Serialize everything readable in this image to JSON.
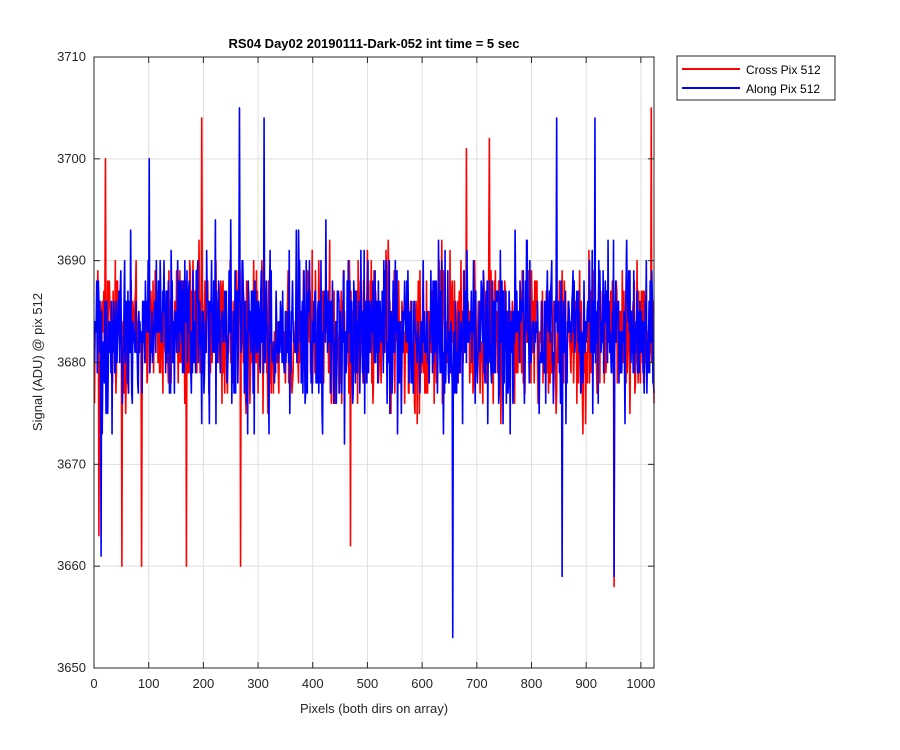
{
  "chart_data": {
    "type": "line",
    "title": "RS04 Day02 20190111-Dark-052 int time = 5 sec",
    "xlabel": "Pixels (both dirs on array)",
    "ylabel": "Signal (ADU) @ pix 512",
    "xlim": [
      0,
      1024
    ],
    "ylim": [
      3650,
      3710
    ],
    "xticks": [
      0,
      100,
      200,
      300,
      400,
      500,
      600,
      700,
      800,
      900,
      1000
    ],
    "yticks": [
      3650,
      3660,
      3670,
      3680,
      3690,
      3700,
      3710
    ],
    "grid": true,
    "legend_position": "outside-top-right",
    "series": [
      {
        "name": "Cross Pix 512",
        "color": "#ff0000",
        "mean": 3683,
        "typical_low": 3672,
        "typical_high": 3694,
        "n_points": 1024,
        "notable_points": [
          {
            "x": 8,
            "y": 3663
          },
          {
            "x": 20,
            "y": 3700
          },
          {
            "x": 50,
            "y": 3660
          },
          {
            "x": 86,
            "y": 3660
          },
          {
            "x": 168,
            "y": 3660
          },
          {
            "x": 196,
            "y": 3704
          },
          {
            "x": 267,
            "y": 3660
          },
          {
            "x": 468,
            "y": 3662
          },
          {
            "x": 680,
            "y": 3701
          },
          {
            "x": 722,
            "y": 3702
          },
          {
            "x": 950,
            "y": 3658
          },
          {
            "x": 1018,
            "y": 3705
          }
        ]
      },
      {
        "name": "Along Pix 512",
        "color": "#0000ff",
        "mean": 3683,
        "typical_low": 3671,
        "typical_high": 3695,
        "n_points": 1024,
        "notable_points": [
          {
            "x": 12,
            "y": 3661
          },
          {
            "x": 100,
            "y": 3700
          },
          {
            "x": 265,
            "y": 3705
          },
          {
            "x": 310,
            "y": 3704
          },
          {
            "x": 655,
            "y": 3653
          },
          {
            "x": 845,
            "y": 3704
          },
          {
            "x": 855,
            "y": 3659
          },
          {
            "x": 915,
            "y": 3704
          },
          {
            "x": 950,
            "y": 3659
          }
        ]
      }
    ]
  }
}
